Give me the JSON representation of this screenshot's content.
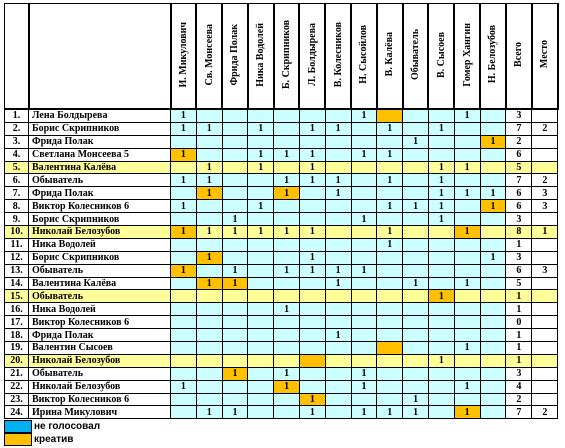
{
  "header": {
    "columns": [
      "И. Микулович",
      "Св. Монсеева",
      "Фрида Полак",
      "Ника Водолей",
      "Б. Скрипников",
      "Л. Болдырева",
      "В. Колесников",
      "Н. Сысойлов",
      "В. Калёва",
      "Обыватель",
      "В. Сысоев",
      "Гомер Хангин",
      "Н. Белозубов",
      "Всего",
      "Место"
    ]
  },
  "table": {
    "rows": [
      {
        "num": "1.",
        "name": "Лена Болдырева",
        "votes": [
          1,
          null,
          null,
          null,
          null,
          null,
          null,
          1,
          null,
          null,
          null,
          1,
          null
        ],
        "creative": [
          8
        ],
        "highlight": false,
        "total": 3,
        "place": null
      },
      {
        "num": "2.",
        "name": "Борис Скрипников",
        "votes": [
          1,
          1,
          null,
          1,
          null,
          1,
          1,
          null,
          1,
          null,
          1,
          null,
          null
        ],
        "creative": [],
        "highlight": false,
        "total": 7,
        "place": 2
      },
      {
        "num": "3.",
        "name": "Фрида Полак",
        "votes": [
          null,
          null,
          null,
          null,
          null,
          null,
          null,
          null,
          null,
          1,
          null,
          null,
          1
        ],
        "creative": [
          12
        ],
        "highlight": false,
        "total": 2,
        "place": null
      },
      {
        "num": "4.",
        "name": "Светлана Монсеева 5",
        "votes": [
          1,
          null,
          null,
          1,
          1,
          1,
          null,
          1,
          1,
          null,
          null,
          null,
          null
        ],
        "creative": [
          0
        ],
        "highlight": false,
        "total": 6,
        "place": null
      },
      {
        "num": "5.",
        "name": "Валентина Калёва",
        "votes": [
          null,
          1,
          null,
          1,
          null,
          1,
          null,
          null,
          null,
          null,
          1,
          1,
          null
        ],
        "creative": [],
        "highlight": true,
        "total": 5,
        "place": null
      },
      {
        "num": "6.",
        "name": "Обыватель",
        "votes": [
          1,
          1,
          null,
          null,
          1,
          1,
          1,
          null,
          1,
          null,
          1,
          null,
          null
        ],
        "creative": [],
        "highlight": false,
        "total": 7,
        "place": 2
      },
      {
        "num": "7.",
        "name": "Фрида Полак",
        "votes": [
          null,
          1,
          null,
          null,
          1,
          null,
          1,
          null,
          null,
          null,
          1,
          1,
          1
        ],
        "creative": [
          1,
          4
        ],
        "highlight": false,
        "total": 6,
        "place": 3
      },
      {
        "num": "8.",
        "name": "Виктор Колесников 6",
        "votes": [
          1,
          null,
          null,
          1,
          null,
          null,
          null,
          null,
          1,
          1,
          1,
          null,
          1
        ],
        "creative": [
          12
        ],
        "highlight": false,
        "total": 6,
        "place": 3
      },
      {
        "num": "9.",
        "name": "Борис Скрипников",
        "votes": [
          null,
          null,
          1,
          null,
          null,
          null,
          null,
          1,
          null,
          null,
          1,
          null,
          null
        ],
        "creative": [],
        "highlight": false,
        "total": 3,
        "place": null
      },
      {
        "num": "10.",
        "name": "Николай Белозубов",
        "votes": [
          1,
          1,
          1,
          1,
          1,
          1,
          null,
          null,
          1,
          null,
          null,
          1,
          null
        ],
        "creative": [
          0,
          11
        ],
        "highlight": true,
        "total": 8,
        "place": 1
      },
      {
        "num": "11.",
        "name": "Ника Водолей",
        "votes": [
          null,
          null,
          null,
          null,
          null,
          null,
          null,
          null,
          1,
          null,
          null,
          null,
          null
        ],
        "creative": [],
        "highlight": false,
        "total": 1,
        "place": null
      },
      {
        "num": "12.",
        "name": "Борис Скрипников",
        "votes": [
          null,
          1,
          null,
          null,
          null,
          1,
          null,
          null,
          null,
          null,
          null,
          null,
          1
        ],
        "creative": [
          1
        ],
        "highlight": false,
        "total": 3,
        "place": null
      },
      {
        "num": "13.",
        "name": "Обыватель",
        "votes": [
          1,
          null,
          1,
          null,
          1,
          1,
          1,
          1,
          null,
          null,
          null,
          null,
          null
        ],
        "creative": [
          0
        ],
        "highlight": false,
        "total": 6,
        "place": 3
      },
      {
        "num": "14.",
        "name": "Валентина Калёва",
        "votes": [
          null,
          1,
          1,
          null,
          null,
          null,
          1,
          null,
          null,
          1,
          null,
          1,
          null
        ],
        "creative": [
          1,
          2
        ],
        "highlight": false,
        "total": 5,
        "place": null
      },
      {
        "num": "15.",
        "name": "Обыватель",
        "votes": [
          null,
          null,
          null,
          null,
          null,
          null,
          null,
          null,
          null,
          null,
          1,
          null,
          null
        ],
        "creative": [
          10
        ],
        "highlight": true,
        "total": 1,
        "place": null
      },
      {
        "num": "16.",
        "name": "Ника Водолей",
        "votes": [
          null,
          null,
          null,
          null,
          1,
          null,
          null,
          null,
          null,
          null,
          null,
          null,
          null
        ],
        "creative": [],
        "highlight": false,
        "total": 1,
        "place": null
      },
      {
        "num": "17.",
        "name": "Виктор Колесников 6",
        "votes": [
          null,
          null,
          null,
          null,
          null,
          null,
          null,
          null,
          null,
          null,
          null,
          null,
          null
        ],
        "creative": [],
        "highlight": false,
        "total": 0,
        "place": null
      },
      {
        "num": "18.",
        "name": "Фрида Полак",
        "votes": [
          null,
          null,
          null,
          null,
          null,
          null,
          1,
          null,
          null,
          null,
          null,
          null,
          null
        ],
        "creative": [],
        "highlight": false,
        "total": 1,
        "place": null
      },
      {
        "num": "19.",
        "name": "Валентин Сысоев",
        "votes": [
          null,
          null,
          null,
          null,
          null,
          null,
          null,
          null,
          null,
          null,
          null,
          1,
          null
        ],
        "creative": [
          8
        ],
        "highlight": false,
        "total": 1,
        "place": null
      },
      {
        "num": "20.",
        "name": "Николай Белозубов",
        "votes": [
          null,
          null,
          null,
          null,
          null,
          null,
          null,
          null,
          null,
          null,
          1,
          null,
          null
        ],
        "creative": [
          5
        ],
        "highlight": true,
        "total": 1,
        "place": null
      },
      {
        "num": "21.",
        "name": "Обыватель",
        "votes": [
          null,
          null,
          1,
          null,
          1,
          null,
          null,
          1,
          null,
          null,
          null,
          null,
          null
        ],
        "creative": [
          2
        ],
        "highlight": false,
        "total": 3,
        "place": null
      },
      {
        "num": "22.",
        "name": "Николай Белозубов",
        "votes": [
          1,
          null,
          null,
          null,
          1,
          null,
          null,
          1,
          null,
          null,
          null,
          1,
          null
        ],
        "creative": [
          4
        ],
        "highlight": false,
        "total": 4,
        "place": null
      },
      {
        "num": "23.",
        "name": "Виктор Колесников 6",
        "votes": [
          null,
          null,
          null,
          null,
          null,
          1,
          null,
          null,
          null,
          1,
          null,
          null,
          null
        ],
        "creative": [
          5
        ],
        "highlight": false,
        "total": 2,
        "place": null
      },
      {
        "num": "24.",
        "name": "Ирина Микулович",
        "votes": [
          null,
          1,
          1,
          null,
          null,
          1,
          null,
          1,
          1,
          1,
          null,
          1,
          null
        ],
        "creative": [
          11
        ],
        "highlight": false,
        "total": 7,
        "place": 2
      }
    ]
  },
  "legend": {
    "items": [
      {
        "label": "не голосовал",
        "color": "#00b0f0"
      },
      {
        "label": "креатив",
        "color": "#ffc000"
      }
    ]
  }
}
